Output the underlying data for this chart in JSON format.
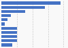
{
  "values": [
    95,
    70,
    38,
    15,
    10,
    6,
    25,
    25,
    25,
    25,
    18
  ],
  "bar_color": "#4472C4",
  "background_color": "#f9f9f9",
  "grid_color": "#cccccc",
  "xlim": [
    0,
    105
  ],
  "n_bars": 11
}
